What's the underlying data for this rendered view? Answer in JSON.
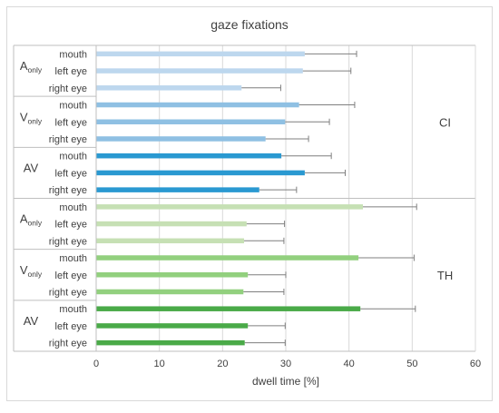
{
  "chart_data": {
    "type": "bar",
    "orientation": "horizontal",
    "title": "gaze fixations",
    "xlabel": "dwell time  [%]",
    "xlim": [
      0,
      60
    ],
    "xticks": [
      0,
      10,
      20,
      30,
      40,
      50,
      60
    ],
    "grid": true,
    "legend": "none",
    "groups": [
      {
        "name": "CI",
        "conditions": [
          {
            "name": "A",
            "subscript": "only",
            "color": "#bdd7ee",
            "bars": [
              {
                "label": "mouth",
                "value": 33.0,
                "error": 8.2
              },
              {
                "label": "left eye",
                "value": 32.7,
                "error": 7.6
              },
              {
                "label": "right eye",
                "value": 23.0,
                "error": 6.2
              }
            ]
          },
          {
            "name": "V",
            "subscript": "only",
            "color": "#8fc0e3",
            "bars": [
              {
                "label": "mouth",
                "value": 32.1,
                "error": 8.8
              },
              {
                "label": "left eye",
                "value": 29.9,
                "error": 7.0
              },
              {
                "label": "right eye",
                "value": 26.8,
                "error": 6.8
              }
            ]
          },
          {
            "name": "AV",
            "subscript": "",
            "color": "#2a99d1",
            "bars": [
              {
                "label": "mouth",
                "value": 29.3,
                "error": 7.9
              },
              {
                "label": "left eye",
                "value": 33.0,
                "error": 6.4
              },
              {
                "label": "right eye",
                "value": 25.8,
                "error": 5.9
              }
            ]
          }
        ]
      },
      {
        "name": "TH",
        "conditions": [
          {
            "name": "A",
            "subscript": "only",
            "color": "#c6e0b4",
            "bars": [
              {
                "label": "mouth",
                "value": 42.2,
                "error": 8.5
              },
              {
                "label": "left eye",
                "value": 23.8,
                "error": 6.0
              },
              {
                "label": "right eye",
                "value": 23.4,
                "error": 6.3
              }
            ]
          },
          {
            "name": "V",
            "subscript": "only",
            "color": "#92d07e",
            "bars": [
              {
                "label": "mouth",
                "value": 41.5,
                "error": 8.8
              },
              {
                "label": "left eye",
                "value": 24.0,
                "error": 6.0
              },
              {
                "label": "right eye",
                "value": 23.3,
                "error": 6.4
              }
            ]
          },
          {
            "name": "AV",
            "subscript": "",
            "color": "#4aaa48",
            "bars": [
              {
                "label": "mouth",
                "value": 41.8,
                "error": 8.7
              },
              {
                "label": "left eye",
                "value": 24.0,
                "error": 5.9
              },
              {
                "label": "right eye",
                "value": 23.5,
                "error": 6.4
              }
            ]
          }
        ]
      }
    ]
  }
}
